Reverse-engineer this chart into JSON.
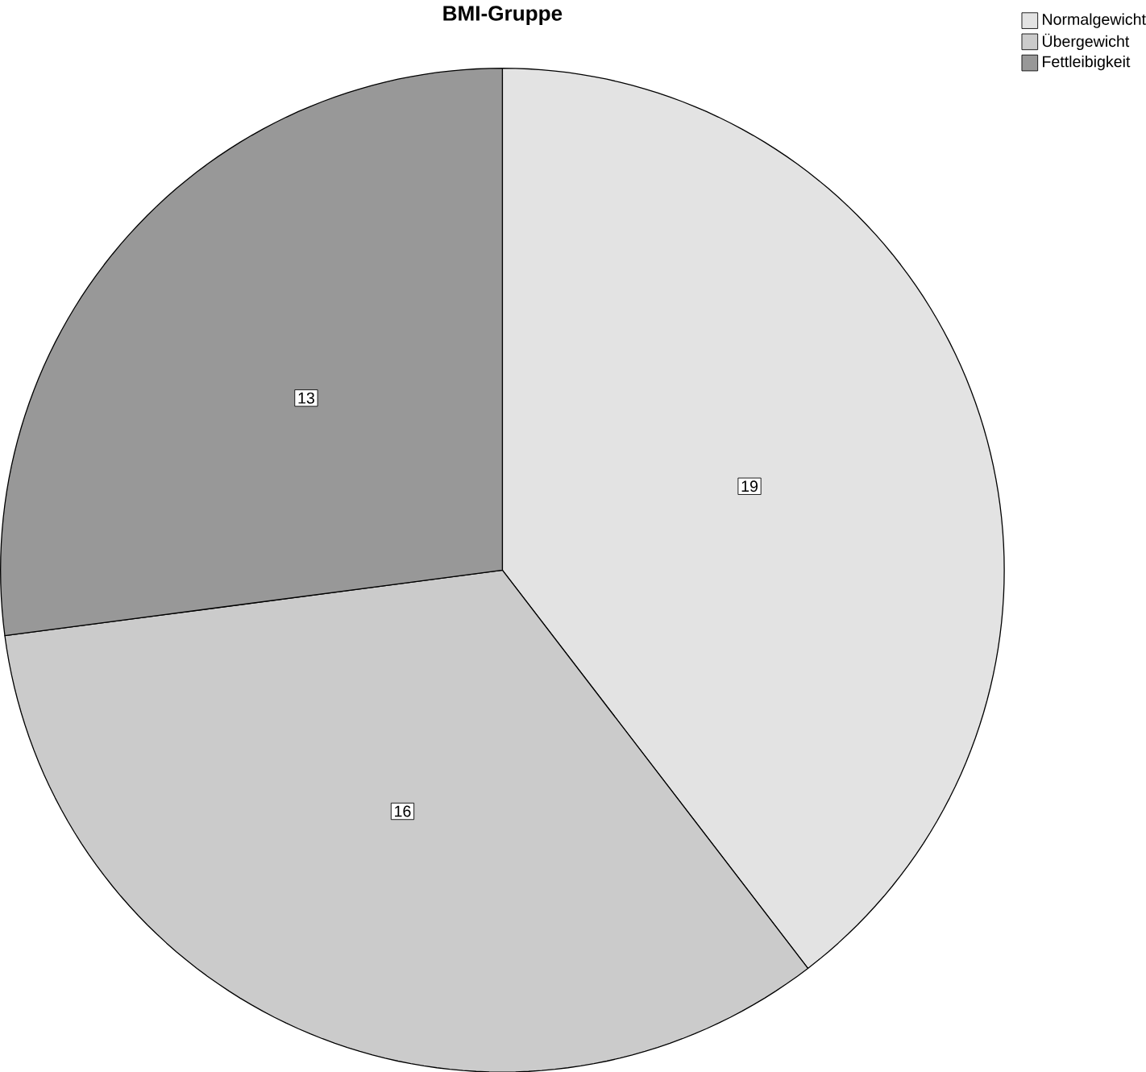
{
  "chart_data": {
    "type": "pie",
    "title": "BMI-Gruppe",
    "categories": [
      "Normalgewicht",
      "Übergewicht",
      "Fettleibigkeit"
    ],
    "values": [
      19,
      16,
      13
    ],
    "colors": [
      "#e3e3e3",
      "#cbcbcb",
      "#989898"
    ],
    "data_labels": true,
    "legend": "top right"
  }
}
